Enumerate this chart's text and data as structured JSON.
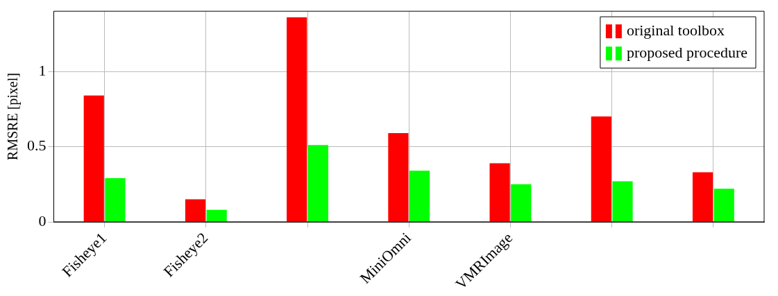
{
  "chart_data": {
    "type": "bar",
    "ylabel": "RMSRE [pixel]",
    "categories": [
      "Fisheye1",
      "Fisheye2",
      null,
      "MiniOmni",
      "VMRImage",
      null,
      null
    ],
    "series": [
      {
        "name": "original toolbox",
        "color": "#ff0000",
        "values": [
          0.84,
          0.15,
          1.36,
          0.59,
          0.39,
          0.7,
          0.33
        ]
      },
      {
        "name": "proposed procedure",
        "color": "#00ff00",
        "values": [
          0.29,
          0.08,
          0.51,
          0.34,
          0.25,
          0.27,
          0.22
        ]
      }
    ],
    "ylim": [
      0,
      1.4
    ],
    "yticks": [
      0,
      0.5,
      1
    ],
    "grid": true,
    "legend": "top right"
  }
}
